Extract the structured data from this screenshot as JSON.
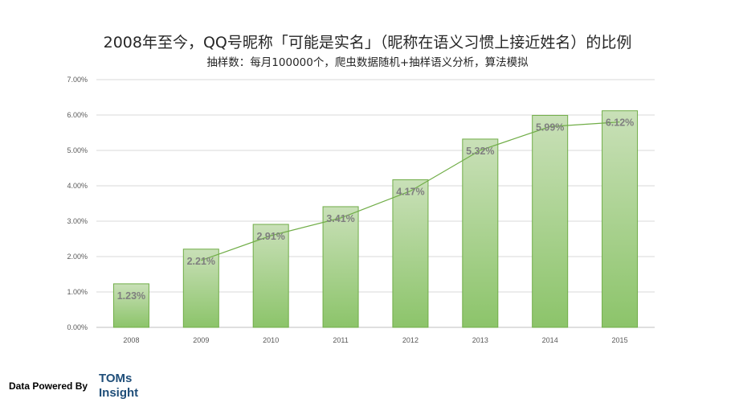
{
  "header": {
    "title": "2008年至今，QQ号昵称「可能是实名」（昵称在语义习惯上接近姓名）的比例",
    "subtitle": "抽样数：每月100000个，爬虫数据随机+抽样语义分析，算法模拟"
  },
  "footer": {
    "powered_by": "Data Powered By",
    "brand_line1": "TOMs",
    "brand_line2": "Insight"
  },
  "chart_data": {
    "type": "bar",
    "categories": [
      "2008",
      "2009",
      "2010",
      "2011",
      "2012",
      "2013",
      "2014",
      "2015"
    ],
    "values": [
      1.23,
      2.21,
      2.91,
      3.41,
      4.17,
      5.32,
      5.99,
      6.12
    ],
    "value_labels": [
      "1.23%",
      "2.21%",
      "2.91%",
      "3.41%",
      "4.17%",
      "5.32%",
      "5.99%",
      "6.12%"
    ],
    "trendline": "line connecting bar values from 2009 to 2015",
    "ylim": [
      0,
      7
    ],
    "yticks": [
      "0.00%",
      "1.00%",
      "2.00%",
      "3.00%",
      "4.00%",
      "5.00%",
      "6.00%",
      "7.00%"
    ],
    "grid": true,
    "legend": "none",
    "colors": {
      "bar_top": "#c9e0b8",
      "bar_bottom": "#8cc46a",
      "bar_stroke": "#70ad47",
      "line": "#70ad47",
      "grid": "#d9d9d9"
    }
  }
}
